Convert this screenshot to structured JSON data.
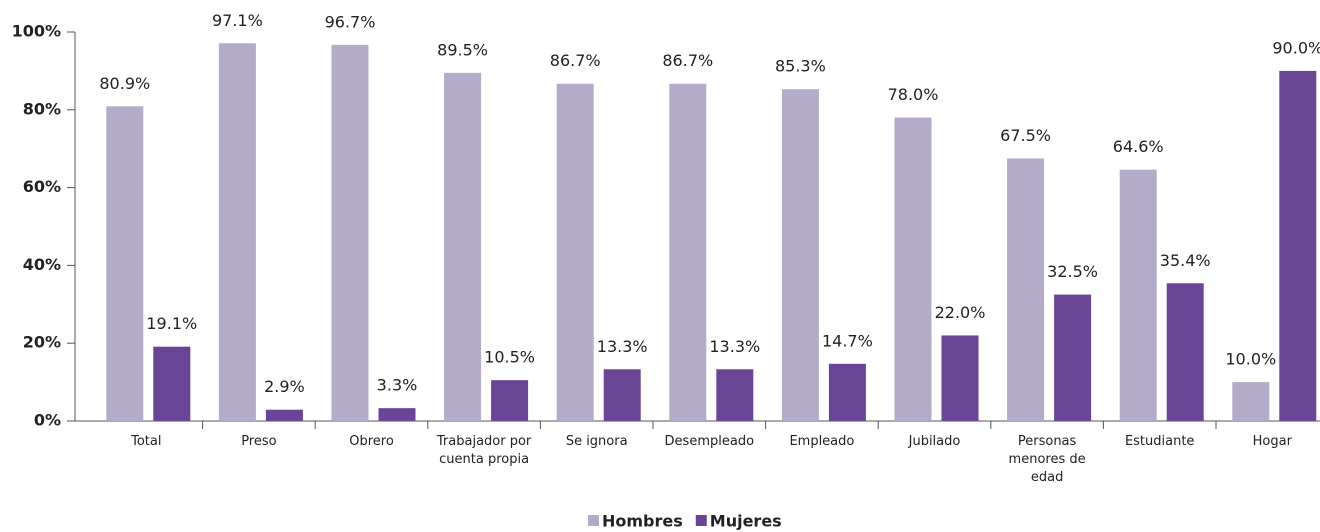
{
  "chart_data": {
    "type": "bar",
    "categories": [
      "Total",
      "Preso",
      "Obrero",
      "Trabajador por cuenta propia",
      "Se ignora",
      "Desempleado",
      "Empleado",
      "Jubilado",
      "Personas menores de edad",
      "Estudiante",
      "Hogar"
    ],
    "series": [
      {
        "name": "Hombres",
        "color": "#b3abc9",
        "values": [
          80.9,
          97.1,
          96.7,
          89.5,
          86.7,
          86.7,
          85.3,
          78.0,
          67.5,
          64.6,
          10.0
        ],
        "value_labels": [
          "80.9%",
          "97.1%",
          "96.7%",
          "89.5%",
          "86.7%",
          "86.7%",
          "85.3%",
          "78.0%",
          "67.5%",
          "64.6%",
          "10.0%"
        ]
      },
      {
        "name": "Mujeres",
        "color": "#6a4596",
        "values": [
          19.1,
          2.9,
          3.3,
          10.5,
          13.3,
          13.3,
          14.7,
          22.0,
          32.5,
          35.4,
          90.0
        ],
        "value_labels": [
          "19.1%",
          "2.9%",
          "3.3%",
          "10.5%",
          "13.3%",
          "13.3%",
          "14.7%",
          "22.0%",
          "32.5%",
          "35.4%",
          "90.0%"
        ]
      }
    ],
    "ylim": [
      0,
      100
    ],
    "yticks": [
      {
        "value": 0,
        "label": "0%"
      },
      {
        "value": 20,
        "label": "20%"
      },
      {
        "value": 40,
        "label": "40%"
      },
      {
        "value": 60,
        "label": "60%"
      },
      {
        "value": 80,
        "label": "80%"
      },
      {
        "value": 100,
        "label": "100%"
      }
    ],
    "legend": "bottom"
  }
}
